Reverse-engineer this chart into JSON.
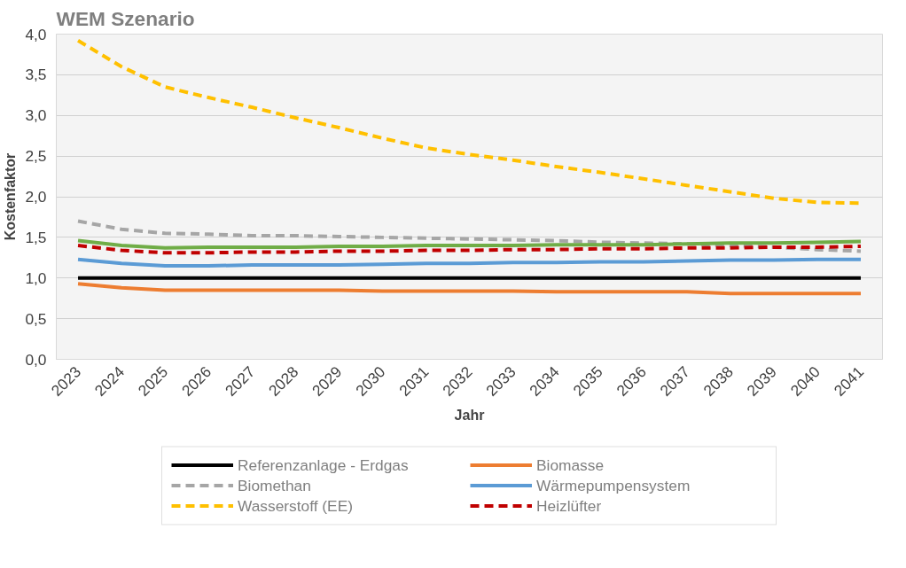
{
  "chart_data": {
    "type": "line",
    "title": "WEM Szenario",
    "xlabel": "Jahr",
    "ylabel": "Kostenfaktor",
    "categories": [
      "2023",
      "2024",
      "2025",
      "2026",
      "2027",
      "2028",
      "2029",
      "2030",
      "2031",
      "2032",
      "2033",
      "2034",
      "2035",
      "2036",
      "2037",
      "2038",
      "2039",
      "2040",
      "2041"
    ],
    "ylim": [
      0,
      4
    ],
    "yticks": [
      {
        "value": 0,
        "label": "0,0"
      },
      {
        "value": 0.5,
        "label": "0,5"
      },
      {
        "value": 1,
        "label": "1,0"
      },
      {
        "value": 1.5,
        "label": "1,5"
      },
      {
        "value": 2,
        "label": "2,0"
      },
      {
        "value": 2.5,
        "label": "2,5"
      },
      {
        "value": 3,
        "label": "3,0"
      },
      {
        "value": 3.5,
        "label": "3,5"
      },
      {
        "value": 4,
        "label": "4,0"
      }
    ],
    "grid": "y",
    "legend": "bottom",
    "marker": "none",
    "series": [
      {
        "name": "Referenzanlage - Erdgas",
        "color": "#000000",
        "line_style": "solid",
        "values": [
          1,
          1,
          1,
          1,
          1,
          1,
          1,
          1,
          1,
          1,
          1,
          1,
          1,
          1,
          1,
          1,
          1,
          1,
          1
        ]
      },
      {
        "name": "Biomethan",
        "color": "#a6a6a6",
        "line_style": "dashed",
        "values": [
          1.7,
          1.6,
          1.55,
          1.54,
          1.52,
          1.52,
          1.51,
          1.5,
          1.49,
          1.48,
          1.47,
          1.46,
          1.44,
          1.43,
          1.42,
          1.4,
          1.38,
          1.35,
          1.33
        ]
      },
      {
        "name": "Wasserstoff (EE)",
        "color": "#ffc000",
        "line_style": "dashed",
        "values": [
          3.92,
          3.6,
          3.35,
          3.22,
          3.1,
          2.97,
          2.85,
          2.72,
          2.6,
          2.52,
          2.45,
          2.37,
          2.3,
          2.22,
          2.14,
          2.06,
          1.98,
          1.93,
          1.92
        ]
      },
      {
        "name": "Biomasse",
        "color": "#ed7d31",
        "line_style": "solid",
        "values": [
          0.93,
          0.88,
          0.85,
          0.85,
          0.85,
          0.85,
          0.85,
          0.84,
          0.84,
          0.84,
          0.84,
          0.83,
          0.83,
          0.83,
          0.83,
          0.81,
          0.81,
          0.81,
          0.81
        ]
      },
      {
        "name": "Wärmepumpensystem",
        "color": "#5b9bd5",
        "line_style": "solid",
        "values": [
          1.23,
          1.18,
          1.15,
          1.15,
          1.16,
          1.16,
          1.16,
          1.17,
          1.18,
          1.18,
          1.19,
          1.19,
          1.2,
          1.2,
          1.21,
          1.22,
          1.22,
          1.23,
          1.23
        ]
      },
      {
        "color": "#70ad47",
        "line_style": "solid",
        "values": [
          1.46,
          1.4,
          1.37,
          1.38,
          1.38,
          1.38,
          1.39,
          1.39,
          1.4,
          1.4,
          1.4,
          1.41,
          1.41,
          1.41,
          1.42,
          1.43,
          1.43,
          1.44,
          1.45
        ]
      },
      {
        "name": "Heizlüfter",
        "color": "#c00000",
        "line_style": "dashed",
        "values": [
          1.4,
          1.34,
          1.31,
          1.31,
          1.32,
          1.32,
          1.33,
          1.33,
          1.34,
          1.34,
          1.35,
          1.35,
          1.36,
          1.36,
          1.37,
          1.37,
          1.38,
          1.38,
          1.39
        ]
      }
    ]
  }
}
